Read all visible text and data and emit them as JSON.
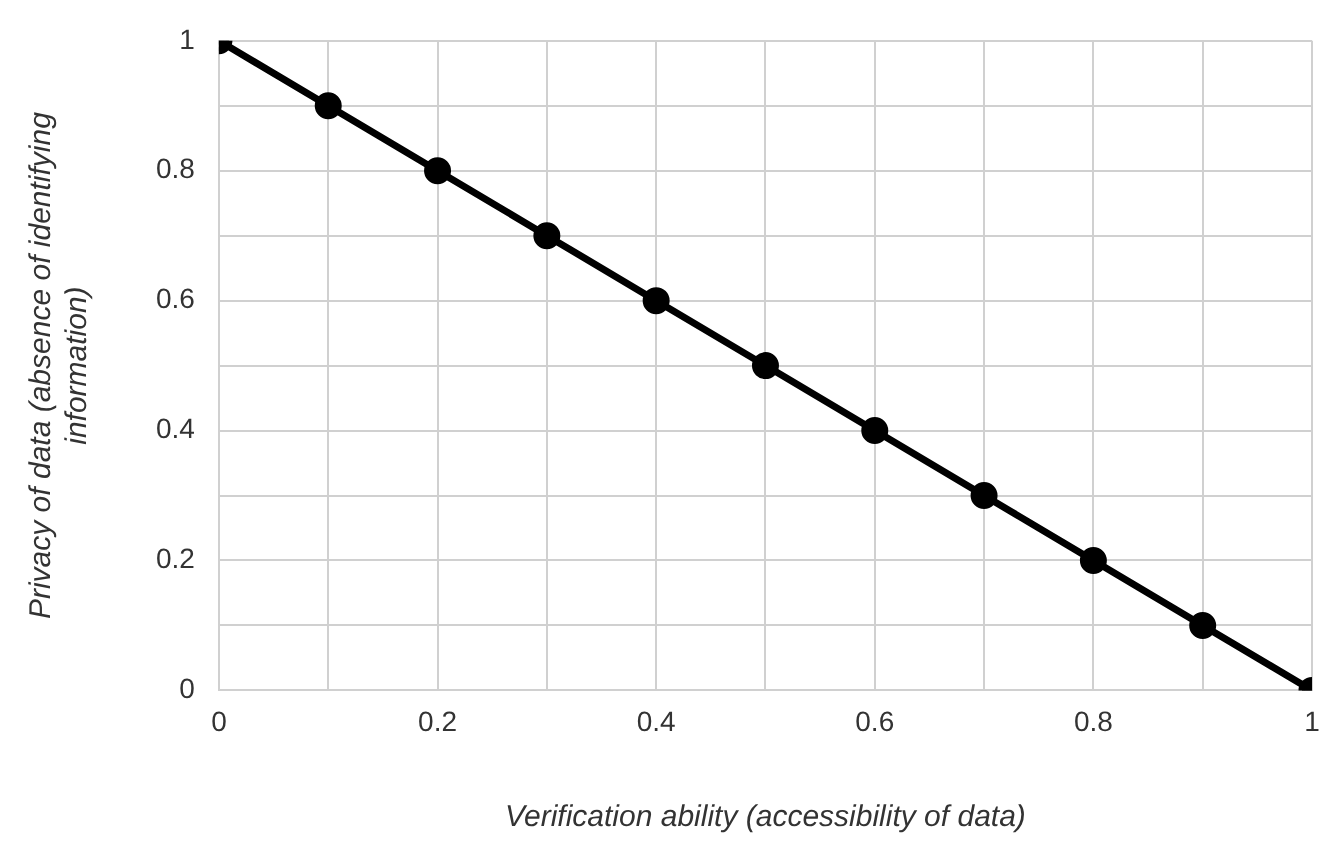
{
  "chart_data": {
    "type": "line",
    "xlabel": "Verification ability (accessibility of data)",
    "ylabel": "Privacy of data (absence of identifying information)",
    "x": [
      0,
      0.1,
      0.2,
      0.3,
      0.4,
      0.5,
      0.6,
      0.7,
      0.8,
      0.9,
      1
    ],
    "series": [
      {
        "color": "#000000",
        "values": [
          1,
          0.9,
          0.8,
          0.7,
          0.6,
          0.5,
          0.4,
          0.3,
          0.2,
          0.1,
          0
        ]
      }
    ],
    "xlim": [
      0,
      1
    ],
    "xticks": [
      0,
      {
        "value": 0.1,
        "label": null
      },
      0.2,
      {
        "value": 0.3,
        "label": null
      },
      0.4,
      {
        "value": 0.5,
        "label": null
      },
      0.6,
      {
        "value": 0.7,
        "label": null
      },
      0.8,
      {
        "value": 0.9,
        "label": null
      },
      1
    ],
    "ylim": [
      0,
      1
    ],
    "yticks": [
      0,
      {
        "value": 0.1,
        "label": null
      },
      0.2,
      {
        "value": 0.3,
        "label": null
      },
      0.4,
      {
        "value": 0.5,
        "label": null
      },
      0.6,
      {
        "value": 0.7,
        "label": null
      },
      0.8,
      {
        "value": 0.9,
        "label": null
      },
      1
    ],
    "grid": true,
    "legend": false,
    "marker": "circle",
    "line_style": "solid"
  }
}
